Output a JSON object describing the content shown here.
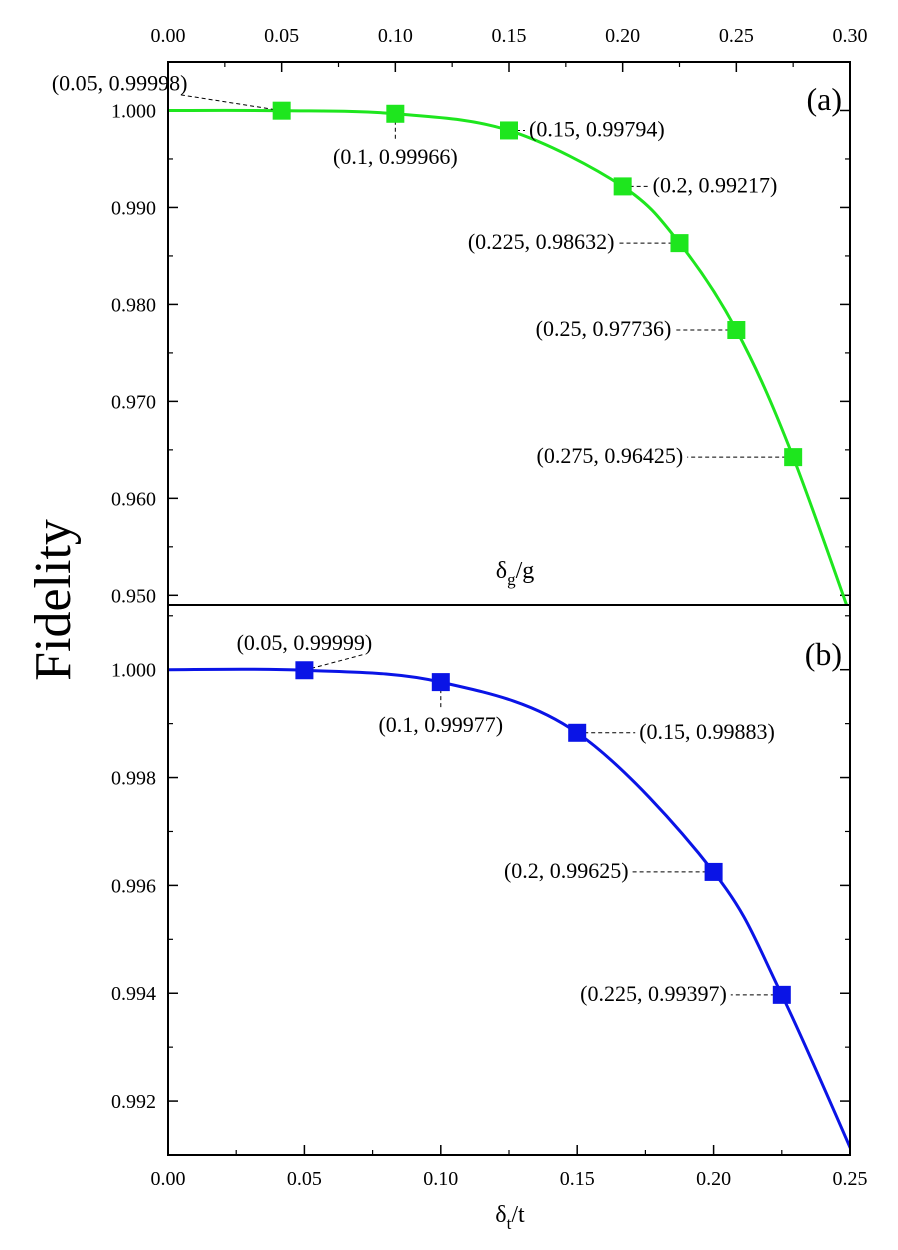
{
  "figure": {
    "ylabel": "Fidelity"
  },
  "chart_data": [
    {
      "type": "line",
      "panel_label": "(a)",
      "xlabel": "δg/g",
      "xlabel_main": "δ",
      "xlabel_sub": "g",
      "xlabel_rest": "/g",
      "ylabel": "Fidelity",
      "xlim": [
        0,
        0.3
      ],
      "ylim": [
        0.949,
        1.005
      ],
      "x_ticks": [
        0,
        0.05,
        0.1,
        0.15,
        0.2,
        0.25,
        0.3
      ],
      "x_tick_labels": [
        "0.00",
        "0.05",
        "0.10",
        "0.15",
        "0.20",
        "0.25",
        "0.30"
      ],
      "y_ticks": [
        1.0,
        0.99,
        0.98,
        0.97,
        0.96,
        0.95
      ],
      "y_tick_labels": [
        "1.000",
        "0.990",
        "0.980",
        "0.970",
        "0.960",
        "0.950"
      ],
      "color": "#1ee61e",
      "points": [
        {
          "x": 0.05,
          "y": 0.99998,
          "label": "(0.05, 0.99998)"
        },
        {
          "x": 0.1,
          "y": 0.99966,
          "label": "(0.1, 0.99966)"
        },
        {
          "x": 0.15,
          "y": 0.99794,
          "label": "(0.15, 0.99794)"
        },
        {
          "x": 0.2,
          "y": 0.99217,
          "label": "(0.2, 0.99217)"
        },
        {
          "x": 0.225,
          "y": 0.98632,
          "label": "(0.225, 0.98632)"
        },
        {
          "x": 0.25,
          "y": 0.97736,
          "label": "(0.25, 0.97736)"
        },
        {
          "x": 0.275,
          "y": 0.96425,
          "label": "(0.275, 0.96425)"
        }
      ]
    },
    {
      "type": "line",
      "panel_label": "(b)",
      "xlabel": "δt/t",
      "xlabel_main": "δ",
      "xlabel_sub": "t",
      "xlabel_rest": "/t",
      "ylabel": "Fidelity",
      "xlim": [
        0,
        0.25
      ],
      "ylim": [
        0.991,
        1.0012
      ],
      "x_ticks": [
        0,
        0.05,
        0.1,
        0.15,
        0.2,
        0.25
      ],
      "x_tick_labels": [
        "0.00",
        "0.05",
        "0.10",
        "0.15",
        "0.20",
        "0.25"
      ],
      "y_ticks": [
        1.0,
        0.998,
        0.996,
        0.994,
        0.992
      ],
      "y_tick_labels": [
        "1.000",
        "0.998",
        "0.996",
        "0.994",
        "0.992"
      ],
      "color": "#0a14e6",
      "points": [
        {
          "x": 0.05,
          "y": 0.99999,
          "label": "(0.05, 0.99999)"
        },
        {
          "x": 0.1,
          "y": 0.99977,
          "label": "(0.1, 0.99977)"
        },
        {
          "x": 0.15,
          "y": 0.99883,
          "label": "(0.15, 0.99883)"
        },
        {
          "x": 0.2,
          "y": 0.99625,
          "label": "(0.2, 0.99625)"
        },
        {
          "x": 0.225,
          "y": 0.99397,
          "label": "(0.225, 0.99397)"
        }
      ]
    }
  ]
}
